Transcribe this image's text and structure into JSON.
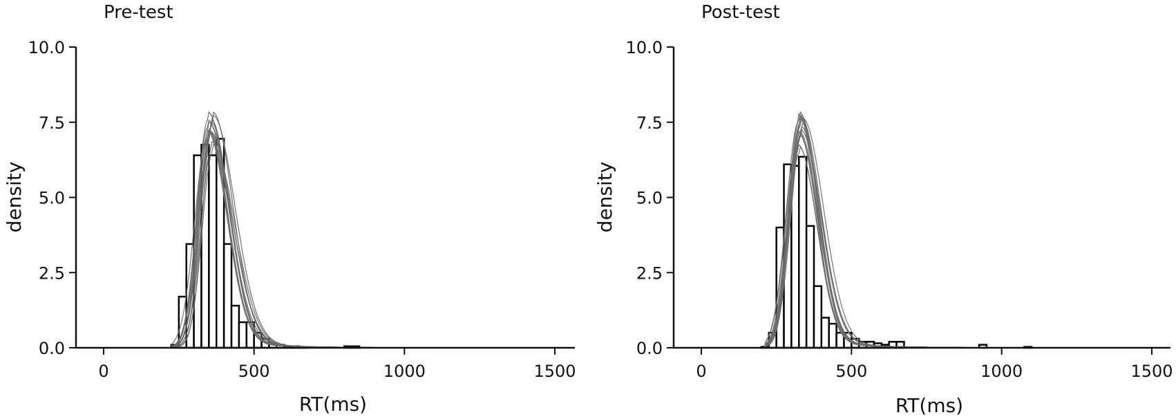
{
  "chart_data": [
    {
      "type": "histogram",
      "title": "Pre-test",
      "xlabel": "RT(ms)",
      "ylabel": "density",
      "xlim": [
        -90,
        1580
      ],
      "ylim": [
        0,
        10
      ],
      "xticks": [
        0,
        500,
        1000,
        1500
      ],
      "yticks": [
        0.0,
        2.5,
        5.0,
        7.5,
        10.0
      ],
      "ytick_labels": [
        "0.0",
        "2.5",
        "5.0",
        "7.5",
        "10.0"
      ],
      "bin_width": 25,
      "bins": [
        {
          "x0": 225,
          "value": 0.1
        },
        {
          "x0": 250,
          "value": 1.7
        },
        {
          "x0": 275,
          "value": 3.45
        },
        {
          "x0": 300,
          "value": 6.4
        },
        {
          "x0": 325,
          "value": 6.75
        },
        {
          "x0": 350,
          "value": 6.4
        },
        {
          "x0": 375,
          "value": 6.95
        },
        {
          "x0": 400,
          "value": 3.45
        },
        {
          "x0": 425,
          "value": 1.4
        },
        {
          "x0": 450,
          "value": 0.85
        },
        {
          "x0": 475,
          "value": 0.85
        },
        {
          "x0": 500,
          "value": 0.5
        },
        {
          "x0": 525,
          "value": 0.3
        },
        {
          "x0": 550,
          "value": 0.15
        },
        {
          "x0": 575,
          "value": 0.1
        },
        {
          "x0": 600,
          "value": 0.05
        },
        {
          "x0": 625,
          "value": 0.05
        },
        {
          "x0": 650,
          "value": 0.03
        },
        {
          "x0": 800,
          "value": 0.05
        },
        {
          "x0": 825,
          "value": 0.05
        }
      ],
      "density_curves": {
        "count": 14,
        "mode": 355,
        "peak_range": [
          6.5,
          7.7
        ],
        "start": 230,
        "end": 1500
      }
    },
    {
      "type": "histogram",
      "title": "Post-test",
      "xlabel": "RT(ms)",
      "ylabel": "density",
      "xlim": [
        -90,
        1580
      ],
      "ylim": [
        0,
        10
      ],
      "xticks": [
        0,
        500,
        1000,
        1500
      ],
      "yticks": [
        0.0,
        2.5,
        5.0,
        7.5,
        10.0
      ],
      "ytick_labels": [
        "0.0",
        "2.5",
        "5.0",
        "7.5",
        "10.0"
      ],
      "bin_width": 25,
      "bins": [
        {
          "x0": 200,
          "value": 0.03
        },
        {
          "x0": 225,
          "value": 0.5
        },
        {
          "x0": 250,
          "value": 4.0
        },
        {
          "x0": 275,
          "value": 6.1
        },
        {
          "x0": 300,
          "value": 6.05
        },
        {
          "x0": 325,
          "value": 6.35
        },
        {
          "x0": 350,
          "value": 4.05
        },
        {
          "x0": 375,
          "value": 2.05
        },
        {
          "x0": 400,
          "value": 1.0
        },
        {
          "x0": 425,
          "value": 0.8
        },
        {
          "x0": 450,
          "value": 0.5
        },
        {
          "x0": 475,
          "value": 0.5
        },
        {
          "x0": 500,
          "value": 0.3
        },
        {
          "x0": 525,
          "value": 0.2
        },
        {
          "x0": 550,
          "value": 0.2
        },
        {
          "x0": 575,
          "value": 0.15
        },
        {
          "x0": 600,
          "value": 0.1
        },
        {
          "x0": 625,
          "value": 0.2
        },
        {
          "x0": 650,
          "value": 0.2
        },
        {
          "x0": 925,
          "value": 0.1
        },
        {
          "x0": 1075,
          "value": 0.03
        }
      ],
      "density_curves": {
        "count": 14,
        "mode": 330,
        "peak_range": [
          6.4,
          7.7
        ],
        "start": 215,
        "end": 1500
      }
    }
  ]
}
